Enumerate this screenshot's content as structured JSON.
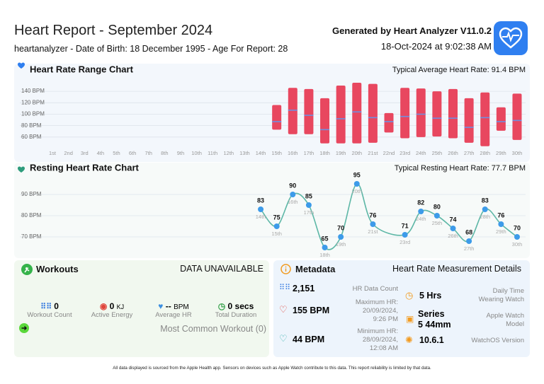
{
  "header": {
    "title": "Heart Report - September 2024",
    "subtitle": "heartanalyzer - Date of Birth: 18 December 1995 - Age For Report:  28",
    "generated": "Generated by Heart Analyzer V11.0.2",
    "timestamp": "18-Oct-2024 at 9:02:38 AM"
  },
  "chart_data": [
    {
      "type": "range_bar",
      "title": "Heart Rate Range Chart",
      "annotation": "Typical Average Heart Rate: 91.4 BPM",
      "categories": [
        "1st",
        "2nd",
        "3rd",
        "4th",
        "5th",
        "6th",
        "7th",
        "8th",
        "9th",
        "10th",
        "11th",
        "12th",
        "13th",
        "14th",
        "15th",
        "16th",
        "17th",
        "18th",
        "19th",
        "20th",
        "21st",
        "22nd",
        "23rd",
        "24th",
        "25th",
        "26th",
        "27th",
        "28th",
        "29th",
        "30th"
      ],
      "low": [
        null,
        null,
        null,
        null,
        null,
        null,
        null,
        null,
        null,
        null,
        null,
        null,
        null,
        null,
        73,
        65,
        65,
        49,
        49,
        49,
        50,
        68,
        58,
        60,
        61,
        58,
        50,
        44,
        71,
        55
      ],
      "high": [
        null,
        null,
        null,
        null,
        null,
        null,
        null,
        null,
        null,
        null,
        null,
        null,
        null,
        null,
        116,
        146,
        144,
        128,
        150,
        155,
        153,
        102,
        146,
        145,
        140,
        144,
        128,
        138,
        112,
        136
      ],
      "average": [
        null,
        null,
        null,
        null,
        null,
        null,
        null,
        null,
        null,
        null,
        null,
        null,
        null,
        null,
        87,
        107,
        98,
        73,
        92,
        104,
        94,
        87,
        96,
        100,
        93,
        93,
        77,
        94,
        87,
        89
      ],
      "color": "#e8475f",
      "average_color": "#6f8fe0",
      "ylim": [
        40,
        155
      ],
      "yticks": [
        {
          "value": 60,
          "label": "60 BPM"
        },
        {
          "value": 80,
          "label": "80 BPM"
        },
        {
          "value": 100,
          "label": "100 BPM"
        },
        {
          "value": 120,
          "label": "120 BPM"
        },
        {
          "value": 140,
          "label": "140 BPM"
        }
      ],
      "grid": true
    },
    {
      "type": "line",
      "title": "Resting Heart Rate Chart",
      "annotation": "Typical Resting Heart Rate: 77.7 BPM",
      "categories": [
        "14th",
        "15th",
        "16th",
        "17th",
        "18th",
        "19th",
        "20th",
        "21st",
        "23rd",
        "24th",
        "25th",
        "26th",
        "27th",
        "28th",
        "29th",
        "30th"
      ],
      "values": [
        83,
        75,
        90,
        85,
        65,
        70,
        95,
        76,
        71,
        82,
        80,
        74,
        68,
        83,
        76,
        70
      ],
      "color": "#5db7a6",
      "marker_color": "#3d9be9",
      "ylim": [
        60,
        100
      ],
      "yticks": [
        {
          "value": 70,
          "label": "70 BPM"
        },
        {
          "value": 80,
          "label": "80 BPM"
        },
        {
          "value": 90,
          "label": "90 BPM"
        }
      ],
      "grid": true
    }
  ],
  "workouts": {
    "title": "Workouts",
    "status": "DATA UNAVAILABLE",
    "stats": [
      {
        "value": "0",
        "label": "Workout Count"
      },
      {
        "value": "0",
        "unit": "KJ",
        "label": "Active Energy"
      },
      {
        "value": "--",
        "unit": "BPM",
        "label": "Average HR"
      },
      {
        "value": "0 secs",
        "label": "Total Duration"
      }
    ],
    "most_common": "Most Common Workout (0)"
  },
  "metadata": {
    "title": "Metadata",
    "subtitle": "Heart Rate Measurement Details",
    "left": [
      {
        "value": "2,151",
        "label": "HR Data Count"
      },
      {
        "value": "155 BPM",
        "label": "Maximum HR:\n20/09/2024,\n9:26 PM"
      },
      {
        "value": "44 BPM",
        "label": "Minimum HR:\n28/09/2024,\n12:08 AM"
      }
    ],
    "right": [
      {
        "value": "5 Hrs",
        "label": "Daily Time\nWearing Watch"
      },
      {
        "value": "Series\n5 44mm",
        "label": "Apple Watch\nModel"
      },
      {
        "value": "10.6.1",
        "label": "WatchOS Version"
      }
    ]
  },
  "footer": "All data displayed is sourced from the Apple Health app. Sensors on devices such as Apple Watch contribute to this data. This report reliability is limited by that data."
}
